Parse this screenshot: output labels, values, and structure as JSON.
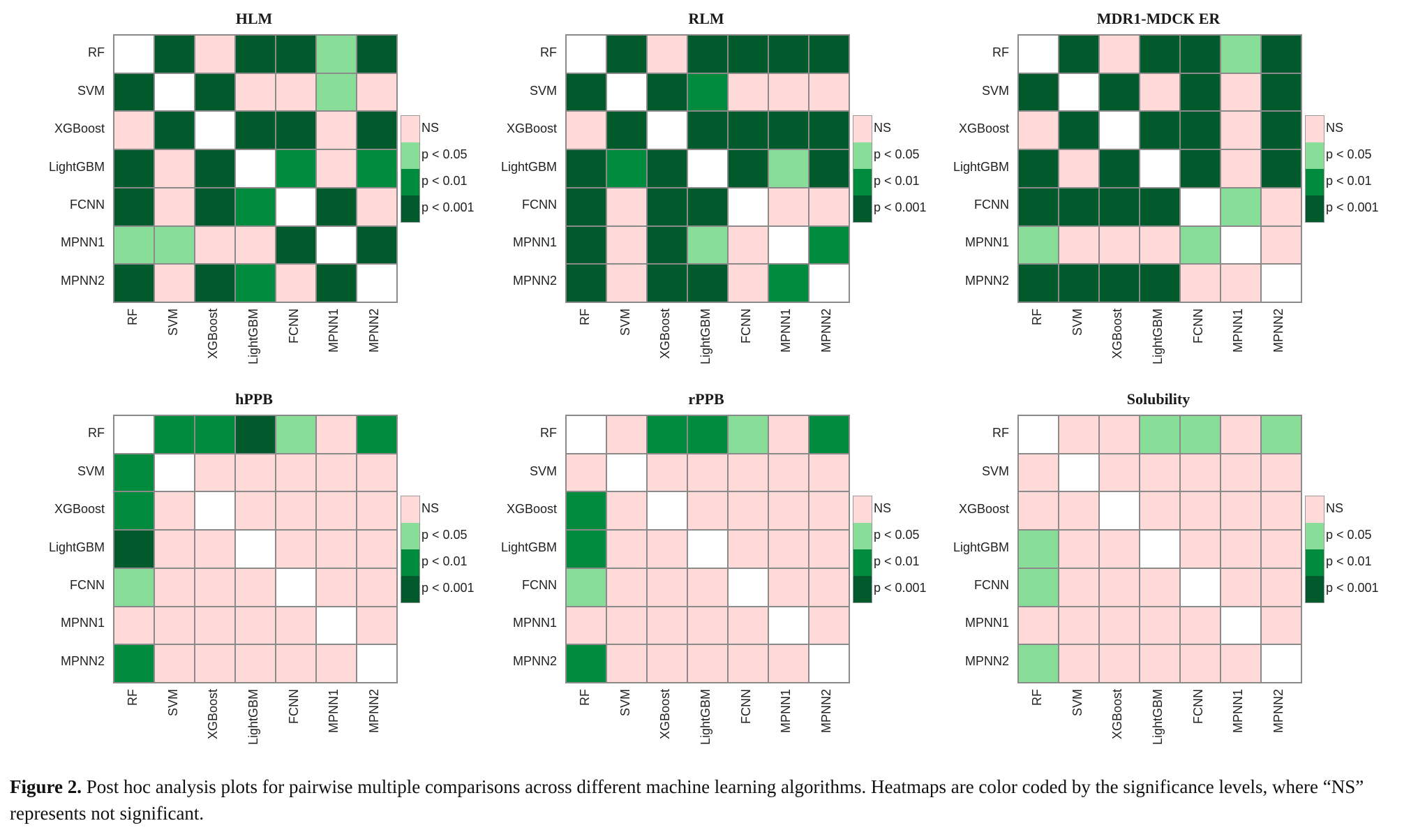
{
  "legend": {
    "levels": [
      {
        "key": "N",
        "label": "NS",
        "color": "#FFDAD8"
      },
      {
        "key": "1",
        "label": "p < 0.05",
        "color": "#88DD99"
      },
      {
        "key": "2",
        "label": "p < 0.01",
        "color": "#008B3E"
      },
      {
        "key": "3",
        "label": "p < 0.001",
        "color": "#005A2B"
      }
    ],
    "diagonal_color": "#FFFFFF",
    "grid_line_color": "#8A8A8A"
  },
  "caption": {
    "label": "Figure 2.",
    "text": " Post hoc analysis plots for pairwise multiple comparisons across different machine learning algorithms. Heatmaps are color coded by the significance levels, where “NS” represents not significant."
  },
  "chart_data": [
    {
      "type": "heatmap",
      "title": "HLM",
      "rows": [
        "RF",
        "SVM",
        "XGBoost",
        "LightGBM",
        "FCNN",
        "MPNN1",
        "MPNN2"
      ],
      "columns": [
        "RF",
        "SVM",
        "XGBoost",
        "LightGBM",
        "FCNN",
        "MPNN1",
        "MPNN2"
      ],
      "encoding": {
        "W": "diagonal",
        "N": "NS",
        "1": "p < 0.05",
        "2": "p < 0.01",
        "3": "p < 0.001"
      },
      "values": [
        [
          "W",
          "3",
          "N",
          "3",
          "3",
          "1",
          "3"
        ],
        [
          "3",
          "W",
          "3",
          "N",
          "N",
          "1",
          "N"
        ],
        [
          "N",
          "3",
          "W",
          "3",
          "3",
          "N",
          "3"
        ],
        [
          "3",
          "N",
          "3",
          "W",
          "2",
          "N",
          "2"
        ],
        [
          "3",
          "N",
          "3",
          "2",
          "W",
          "3",
          "N"
        ],
        [
          "1",
          "1",
          "N",
          "N",
          "3",
          "W",
          "3"
        ],
        [
          "3",
          "N",
          "3",
          "2",
          "N",
          "3",
          "W"
        ]
      ],
      "legend_position": "right"
    },
    {
      "type": "heatmap",
      "title": "RLM",
      "rows": [
        "RF",
        "SVM",
        "XGBoost",
        "LightGBM",
        "FCNN",
        "MPNN1",
        "MPNN2"
      ],
      "columns": [
        "RF",
        "SVM",
        "XGBoost",
        "LightGBM",
        "FCNN",
        "MPNN1",
        "MPNN2"
      ],
      "encoding": {
        "W": "diagonal",
        "N": "NS",
        "1": "p < 0.05",
        "2": "p < 0.01",
        "3": "p < 0.001"
      },
      "values": [
        [
          "W",
          "3",
          "N",
          "3",
          "3",
          "3",
          "3"
        ],
        [
          "3",
          "W",
          "3",
          "2",
          "N",
          "N",
          "N"
        ],
        [
          "N",
          "3",
          "W",
          "3",
          "3",
          "3",
          "3"
        ],
        [
          "3",
          "2",
          "3",
          "W",
          "3",
          "1",
          "3"
        ],
        [
          "3",
          "N",
          "3",
          "3",
          "W",
          "N",
          "N"
        ],
        [
          "3",
          "N",
          "3",
          "1",
          "N",
          "W",
          "2"
        ],
        [
          "3",
          "N",
          "3",
          "3",
          "N",
          "2",
          "W"
        ]
      ],
      "legend_position": "right"
    },
    {
      "type": "heatmap",
      "title": "MDR1-MDCK ER",
      "rows": [
        "RF",
        "SVM",
        "XGBoost",
        "LightGBM",
        "FCNN",
        "MPNN1",
        "MPNN2"
      ],
      "columns": [
        "RF",
        "SVM",
        "XGBoost",
        "LightGBM",
        "FCNN",
        "MPNN1",
        "MPNN2"
      ],
      "encoding": {
        "W": "diagonal",
        "N": "NS",
        "1": "p < 0.05",
        "2": "p < 0.01",
        "3": "p < 0.001"
      },
      "values": [
        [
          "W",
          "3",
          "N",
          "3",
          "3",
          "1",
          "3"
        ],
        [
          "3",
          "W",
          "3",
          "N",
          "3",
          "N",
          "3"
        ],
        [
          "N",
          "3",
          "W",
          "3",
          "3",
          "N",
          "3"
        ],
        [
          "3",
          "N",
          "3",
          "W",
          "3",
          "N",
          "3"
        ],
        [
          "3",
          "3",
          "3",
          "3",
          "W",
          "1",
          "N"
        ],
        [
          "1",
          "N",
          "N",
          "N",
          "1",
          "W",
          "N"
        ],
        [
          "3",
          "3",
          "3",
          "3",
          "N",
          "N",
          "W"
        ]
      ],
      "legend_position": "right"
    },
    {
      "type": "heatmap",
      "title": "hPPB",
      "rows": [
        "RF",
        "SVM",
        "XGBoost",
        "LightGBM",
        "FCNN",
        "MPNN1",
        "MPNN2"
      ],
      "columns": [
        "RF",
        "SVM",
        "XGBoost",
        "LightGBM",
        "FCNN",
        "MPNN1",
        "MPNN2"
      ],
      "encoding": {
        "W": "diagonal",
        "N": "NS",
        "1": "p < 0.05",
        "2": "p < 0.01",
        "3": "p < 0.001"
      },
      "values": [
        [
          "W",
          "2",
          "2",
          "3",
          "1",
          "N",
          "2"
        ],
        [
          "2",
          "W",
          "N",
          "N",
          "N",
          "N",
          "N"
        ],
        [
          "2",
          "N",
          "W",
          "N",
          "N",
          "N",
          "N"
        ],
        [
          "3",
          "N",
          "N",
          "W",
          "N",
          "N",
          "N"
        ],
        [
          "1",
          "N",
          "N",
          "N",
          "W",
          "N",
          "N"
        ],
        [
          "N",
          "N",
          "N",
          "N",
          "N",
          "W",
          "N"
        ],
        [
          "2",
          "N",
          "N",
          "N",
          "N",
          "N",
          "W"
        ]
      ],
      "legend_position": "right"
    },
    {
      "type": "heatmap",
      "title": "rPPB",
      "rows": [
        "RF",
        "SVM",
        "XGBoost",
        "LightGBM",
        "FCNN",
        "MPNN1",
        "MPNN2"
      ],
      "columns": [
        "RF",
        "SVM",
        "XGBoost",
        "LightGBM",
        "FCNN",
        "MPNN1",
        "MPNN2"
      ],
      "encoding": {
        "W": "diagonal",
        "N": "NS",
        "1": "p < 0.05",
        "2": "p < 0.01",
        "3": "p < 0.001"
      },
      "values": [
        [
          "W",
          "N",
          "2",
          "2",
          "1",
          "N",
          "2"
        ],
        [
          "N",
          "W",
          "N",
          "N",
          "N",
          "N",
          "N"
        ],
        [
          "2",
          "N",
          "W",
          "N",
          "N",
          "N",
          "N"
        ],
        [
          "2",
          "N",
          "N",
          "W",
          "N",
          "N",
          "N"
        ],
        [
          "1",
          "N",
          "N",
          "N",
          "W",
          "N",
          "N"
        ],
        [
          "N",
          "N",
          "N",
          "N",
          "N",
          "W",
          "N"
        ],
        [
          "2",
          "N",
          "N",
          "N",
          "N",
          "N",
          "W"
        ]
      ],
      "legend_position": "right"
    },
    {
      "type": "heatmap",
      "title": "Solubility",
      "rows": [
        "RF",
        "SVM",
        "XGBoost",
        "LightGBM",
        "FCNN",
        "MPNN1",
        "MPNN2"
      ],
      "columns": [
        "RF",
        "SVM",
        "XGBoost",
        "LightGBM",
        "FCNN",
        "MPNN1",
        "MPNN2"
      ],
      "encoding": {
        "W": "diagonal",
        "N": "NS",
        "1": "p < 0.05",
        "2": "p < 0.01",
        "3": "p < 0.001"
      },
      "values": [
        [
          "W",
          "N",
          "N",
          "1",
          "1",
          "N",
          "1"
        ],
        [
          "N",
          "W",
          "N",
          "N",
          "N",
          "N",
          "N"
        ],
        [
          "N",
          "N",
          "W",
          "N",
          "N",
          "N",
          "N"
        ],
        [
          "1",
          "N",
          "N",
          "W",
          "N",
          "N",
          "N"
        ],
        [
          "1",
          "N",
          "N",
          "N",
          "W",
          "N",
          "N"
        ],
        [
          "N",
          "N",
          "N",
          "N",
          "N",
          "W",
          "N"
        ],
        [
          "1",
          "N",
          "N",
          "N",
          "N",
          "N",
          "W"
        ]
      ],
      "legend_position": "right"
    }
  ]
}
